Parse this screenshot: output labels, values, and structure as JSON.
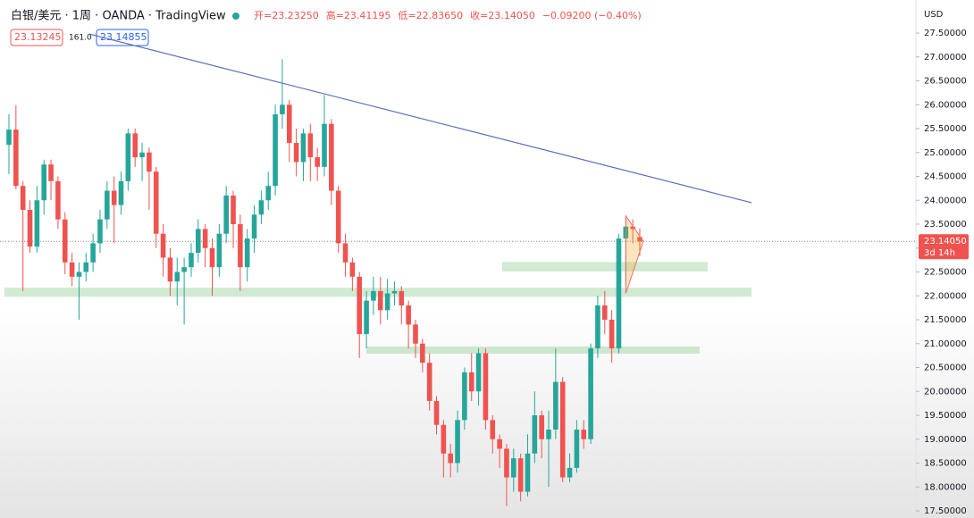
{
  "chart_data": {
    "type": "candlestick",
    "title": "白银/美元 · 1周 · OANDA · TradingView",
    "legend_values": [
      "开=23.23250",
      "高=23.41195",
      "低=22.83650",
      "收=23.14050",
      "−0.09200 (−0.40%)"
    ],
    "info_tags": [
      "23.13245",
      "161.0",
      "23.14855"
    ],
    "currency": "USD",
    "up_color": "#26a69a",
    "down_color": "#ef5350",
    "open": [
      25.16,
      25.48,
      24.3,
      23.8,
      23.03,
      24.0,
      24.75,
      24.4,
      23.6,
      22.7,
      22.4,
      22.5,
      22.7,
      23.1,
      23.6,
      24.2,
      23.9,
      24.4,
      25.4,
      24.9,
      25.0,
      24.6,
      23.3,
      22.8,
      22.3,
      22.5,
      22.6,
      22.9,
      23.4,
      23.0,
      22.6,
      23.3,
      24.1,
      23.5,
      22.6,
      23.2,
      23.7,
      24.0,
      24.3,
      25.8,
      26.0,
      25.2,
      24.8,
      25.4,
      24.9,
      24.7,
      25.6,
      24.2,
      23.1,
      22.7,
      22.4,
      21.2,
      21.9,
      22.1,
      21.7,
      22.05,
      22.1,
      21.8,
      21.4,
      21.0,
      20.6,
      19.8,
      19.3,
      18.7,
      18.5,
      19.4,
      20.4,
      20.0,
      20.8,
      19.4,
      19.0,
      18.8,
      18.2,
      18.6,
      17.9,
      18.7,
      19.5,
      19.0,
      19.2,
      20.2,
      18.2,
      18.4,
      19.2,
      19.0,
      20.9,
      21.8,
      21.5,
      20.9,
      23.2,
      23.45,
      23.2325
    ],
    "high": [
      25.8,
      25.99,
      24.4,
      24.0,
      24.3,
      24.85,
      24.85,
      24.5,
      23.75,
      22.9,
      22.7,
      22.9,
      23.3,
      23.8,
      24.4,
      24.5,
      24.6,
      25.5,
      25.5,
      25.2,
      25.1,
      24.7,
      23.5,
      23.0,
      22.8,
      22.8,
      23.1,
      23.6,
      23.5,
      23.2,
      23.5,
      24.3,
      24.2,
      23.7,
      23.4,
      23.9,
      24.2,
      24.6,
      26.0,
      26.95,
      26.1,
      25.5,
      25.5,
      25.6,
      25.1,
      26.2,
      25.7,
      24.3,
      23.3,
      22.8,
      22.5,
      22.1,
      22.4,
      22.4,
      22.35,
      22.3,
      22.2,
      21.9,
      21.5,
      21.1,
      20.8,
      19.9,
      19.4,
      18.9,
      19.6,
      20.5,
      20.8,
      20.9,
      20.9,
      19.5,
      19.1,
      18.9,
      18.8,
      18.7,
      19.1,
      20.0,
      19.6,
      19.6,
      20.9,
      20.3,
      18.7,
      19.4,
      19.4,
      21.0,
      22.0,
      22.1,
      21.7,
      23.3,
      23.65,
      23.6,
      23.41195
    ],
    "low": [
      24.55,
      24.23,
      22.1,
      22.9,
      22.9,
      23.7,
      24.0,
      23.4,
      22.45,
      22.2,
      21.5,
      22.3,
      22.5,
      22.9,
      23.4,
      23.1,
      23.7,
      24.2,
      24.7,
      24.4,
      23.8,
      23.0,
      22.4,
      22.0,
      21.8,
      21.4,
      22.4,
      22.7,
      22.6,
      22.0,
      22.4,
      23.1,
      23.0,
      22.1,
      22.3,
      22.9,
      23.5,
      23.8,
      24.1,
      25.5,
      24.8,
      24.5,
      24.4,
      24.4,
      24.4,
      24.5,
      23.9,
      22.9,
      22.4,
      22.1,
      20.7,
      20.9,
      21.6,
      21.4,
      21.5,
      21.8,
      21.4,
      20.9,
      20.7,
      20.4,
      19.6,
      19.1,
      18.2,
      18.2,
      18.3,
      19.2,
      19.8,
      19.7,
      19.2,
      18.7,
      18.4,
      17.6,
      17.9,
      17.7,
      17.8,
      18.5,
      18.6,
      18.0,
      19.0,
      18.1,
      18.1,
      18.3,
      18.8,
      18.9,
      20.7,
      21.2,
      20.6,
      20.8,
      22.2,
      23.1,
      22.8365
    ],
    "close": [
      25.48,
      24.3,
      23.8,
      23.03,
      24.0,
      24.75,
      24.4,
      23.6,
      22.7,
      22.4,
      22.5,
      22.7,
      23.1,
      23.6,
      24.2,
      23.9,
      24.4,
      25.4,
      24.9,
      25.0,
      24.6,
      23.3,
      22.8,
      22.3,
      22.5,
      22.6,
      22.9,
      23.4,
      23.0,
      22.6,
      23.3,
      24.1,
      23.5,
      22.6,
      23.2,
      23.7,
      24.0,
      24.3,
      25.8,
      26.0,
      25.2,
      24.8,
      25.4,
      24.9,
      24.7,
      25.6,
      24.2,
      23.1,
      22.7,
      22.4,
      21.2,
      21.9,
      22.1,
      21.7,
      22.05,
      22.1,
      21.8,
      21.4,
      21.0,
      20.6,
      19.8,
      19.3,
      18.7,
      18.5,
      19.4,
      20.4,
      20.0,
      20.8,
      19.4,
      19.0,
      18.8,
      18.2,
      18.6,
      17.9,
      18.7,
      19.5,
      19.0,
      19.2,
      20.2,
      18.2,
      18.4,
      19.2,
      19.0,
      20.9,
      21.8,
      21.5,
      20.9,
      23.2,
      23.45,
      23.4,
      23.1405
    ],
    "last_price": {
      "value": 23.1405,
      "label": "23.14050"
    },
    "countdown": "3d 14h",
    "zones": [
      {
        "top": 22.17,
        "bottom": 21.98
      },
      {
        "top": 22.71,
        "bottom": 22.51
      },
      {
        "top": 20.94,
        "bottom": 20.79
      }
    ],
    "trendline": [
      27.48,
      23.95
    ],
    "ylim": [
      17.5,
      27.5
    ],
    "yticks": [
      {
        "value": 17.5,
        "label": "17.50000"
      },
      {
        "value": 18,
        "label": "18.00000"
      },
      {
        "value": 18.5,
        "label": "18.50000"
      },
      {
        "value": 19,
        "label": "19.00000"
      },
      {
        "value": 19.5,
        "label": "19.50000"
      },
      {
        "value": 20,
        "label": "20.00000"
      },
      {
        "value": 20.5,
        "label": "20.50000"
      },
      {
        "value": 21,
        "label": "21.00000"
      },
      {
        "value": 21.5,
        "label": "21.50000"
      },
      {
        "value": 22,
        "label": "22.00000"
      },
      {
        "value": 22.5,
        "label": "22.50000"
      },
      {
        "value": 23,
        "label": "23.00000"
      },
      {
        "value": 23.5,
        "label": "23.50000"
      },
      {
        "value": 24,
        "label": "24.00000"
      },
      {
        "value": 24.5,
        "label": "24.50000"
      },
      {
        "value": 25,
        "label": "25.00000"
      },
      {
        "value": 25.5,
        "label": "25.50000"
      },
      {
        "value": 26,
        "label": "26.00000"
      },
      {
        "value": 26.5,
        "label": "26.50000"
      },
      {
        "value": 27,
        "label": "27.00000"
      },
      {
        "value": 27.5,
        "label": "27.50000"
      }
    ]
  }
}
